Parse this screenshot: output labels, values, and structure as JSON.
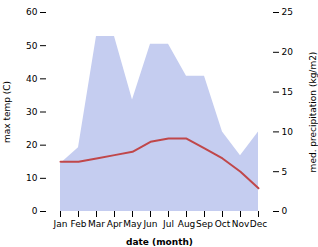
{
  "chart_data": {
    "type": "line",
    "xlabel": "date (month)",
    "ylabel": "max temp (C)",
    "y2label": "med. precipitation (kg/m2)",
    "categories": [
      "Jan",
      "Feb",
      "Mar",
      "Apr",
      "May",
      "Jun",
      "Jul",
      "Aug",
      "Sep",
      "Oct",
      "Nov",
      "Dec"
    ],
    "series": [
      {
        "type": "area",
        "axis": "y2",
        "color": "#c5cdf0",
        "values": [
          6,
          8,
          22,
          22,
          14,
          21,
          21,
          17,
          17,
          10,
          7,
          10
        ]
      },
      {
        "type": "line",
        "color": "#c0474a",
        "values": [
          15,
          15,
          16,
          17,
          18,
          21,
          22,
          22,
          19,
          16,
          12,
          7
        ]
      }
    ],
    "ylim": [
      0,
      60
    ],
    "yticks": [
      0,
      10,
      20,
      30,
      40,
      50,
      60
    ],
    "y2lim": [
      0,
      25
    ],
    "y2ticks": [
      0,
      5,
      10,
      15,
      20,
      25
    ],
    "grid": false
  }
}
